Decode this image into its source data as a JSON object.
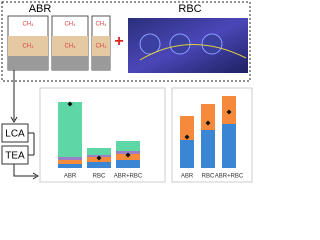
{
  "header": {
    "left_label": "ABR",
    "right_label": "RBC",
    "tank_labels": [
      "CH₄",
      "CH₄",
      "CH₄",
      "CH₄",
      "CH₄",
      "CH₄"
    ]
  },
  "boxes": [
    "LCA",
    "TEA"
  ],
  "charts": [
    {
      "type": "bar",
      "stacked": true,
      "categories": [
        "ABR",
        "RBC",
        "ABR+RBC"
      ],
      "series": [
        {
          "color": "#3a86d4",
          "values": [
            4,
            6,
            8
          ]
        },
        {
          "color": "#f58a3c",
          "values": [
            4,
            5,
            6
          ]
        },
        {
          "color": "#9c7fc4",
          "values": [
            3,
            2,
            3
          ]
        },
        {
          "color": "#5fd6a6",
          "values": [
            55,
            7,
            10
          ]
        }
      ],
      "markers": [
        64,
        10,
        13
      ]
    },
    {
      "type": "bar",
      "stacked": true,
      "categories": [
        "ABR",
        "RBC",
        "ABR+RBC"
      ],
      "series": [
        {
          "color": "#3a86d4",
          "values": [
            28,
            38,
            44
          ]
        },
        {
          "color": "#f58a3c",
          "values": [
            24,
            26,
            28
          ]
        }
      ],
      "markers": [
        31,
        45,
        56
      ]
    }
  ]
}
